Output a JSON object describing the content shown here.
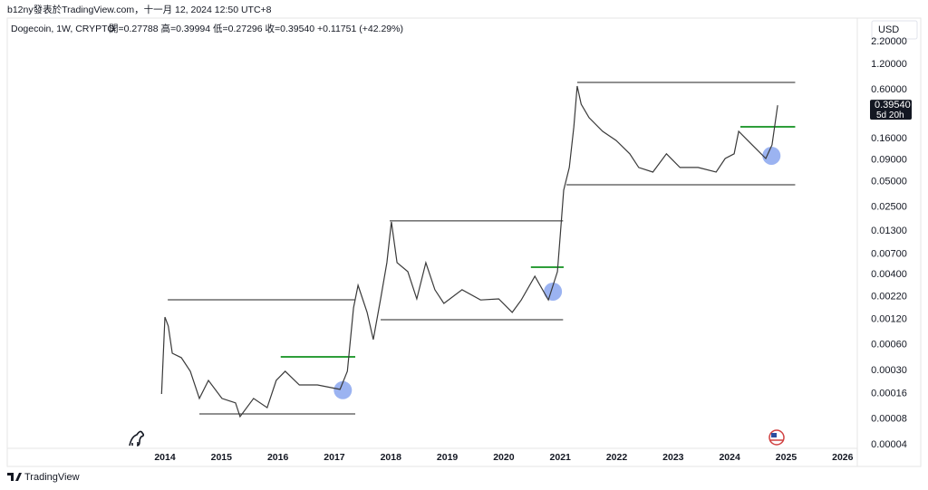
{
  "header": {
    "byline": "b12ny發表於TradingView.com，十一月 12, 2024 12:50 UTC+8",
    "brand": "TradingView"
  },
  "chart_data": {
    "type": "line",
    "symbol": "Dogecoin, 1W, CRYPTO",
    "ohlc": "開=0.27788 高=0.39994 低=0.27296 收=0.39540 +0.11751 (+42.29%)",
    "currency": "USD",
    "last_price_label": "0.39540",
    "countdown": "5d 20h",
    "log_scale": true,
    "grid": false,
    "color": "#3a3a3a",
    "x": [
      2013.94,
      2014.0,
      2014.06,
      2014.13,
      2014.29,
      2014.45,
      2014.61,
      2014.77,
      2015.01,
      2015.25,
      2015.33,
      2015.57,
      2015.81,
      2015.97,
      2016.13,
      2016.38,
      2016.7,
      2017.1,
      2017.23,
      2017.34,
      2017.42,
      2017.58,
      2017.69,
      2017.82,
      2017.93,
      2018.01,
      2018.11,
      2018.3,
      2018.46,
      2018.62,
      2018.78,
      2018.94,
      2019.26,
      2019.59,
      2019.91,
      2020.15,
      2020.31,
      2020.55,
      2020.79,
      2020.95,
      2021.0,
      2021.06,
      2021.16,
      2021.24,
      2021.3,
      2021.37,
      2021.51,
      2021.75,
      2021.99,
      2022.23,
      2022.39,
      2022.64,
      2022.88,
      2023.12,
      2023.44,
      2023.76,
      2023.92,
      2024.08,
      2024.16,
      2024.32,
      2024.48,
      2024.64,
      2024.75,
      2024.85
    ],
    "values": [
      0.000158,
      0.00127,
      0.000995,
      0.000477,
      0.000422,
      0.000292,
      0.00014,
      0.000228,
      0.00014,
      0.000124,
      8.55e-05,
      0.00014,
      0.000109,
      0.000228,
      0.000292,
      0.000202,
      0.000202,
      0.000179,
      0.000292,
      0.00163,
      0.003,
      0.00144,
      0.00069,
      0.00208,
      0.00555,
      0.0168,
      0.00555,
      0.00435,
      0.00208,
      0.00555,
      0.00266,
      0.00184,
      0.00266,
      0.00202,
      0.00208,
      0.00144,
      0.00202,
      0.00384,
      0.00202,
      0.00435,
      0.0116,
      0.0395,
      0.0731,
      0.22,
      0.665,
      0.407,
      0.282,
      0.195,
      0.152,
      0.106,
      0.0731,
      0.0646,
      0.106,
      0.0731,
      0.0731,
      0.0646,
      0.0933,
      0.106,
      0.195,
      0.152,
      0.119,
      0.0933,
      0.135,
      0.3954
    ],
    "xlim": [
      2011.24,
      2026.26
    ],
    "xticks": [
      2014,
      2015,
      2016,
      2017,
      2018,
      2019,
      2020,
      2021,
      2022,
      2023,
      2024,
      2025,
      2026
    ],
    "ylim": [
      3.62e-05,
      3.99
    ],
    "yticks": [
      {
        "value": 2.2,
        "label": "2.20000"
      },
      {
        "value": 1.2,
        "label": "1.20000"
      },
      {
        "value": 0.6,
        "label": "0.60000"
      },
      {
        "value": 0.16,
        "label": "0.16000"
      },
      {
        "value": 0.09,
        "label": "0.09000"
      },
      {
        "value": 0.05,
        "label": "0.05000"
      },
      {
        "value": 0.025,
        "label": "0.02500"
      },
      {
        "value": 0.013,
        "label": "0.01300"
      },
      {
        "value": 0.007,
        "label": "0.00700"
      },
      {
        "value": 0.004,
        "label": "0.00400"
      },
      {
        "value": 0.0022,
        "label": "0.00220"
      },
      {
        "value": 0.0012,
        "label": "0.00120"
      },
      {
        "value": 0.0006,
        "label": "0.00060"
      },
      {
        "value": 0.0003,
        "label": "0.00030"
      },
      {
        "value": 0.00016,
        "label": "0.00016"
      },
      {
        "value": 8e-05,
        "label": "0.00008"
      },
      {
        "value": 4e-05,
        "label": "0.00004"
      }
    ],
    "levels": [
      {
        "value": 0.00203,
        "x": [
          2014.05,
          2017.37
        ],
        "color": "#222222"
      },
      {
        "value": 9.2e-05,
        "x": [
          2014.61,
          2017.37
        ],
        "color": "#222222"
      },
      {
        "value": 0.0172,
        "x": [
          2017.98,
          2021.05
        ],
        "color": "#222222"
      },
      {
        "value": 0.00118,
        "x": [
          2017.82,
          2021.05
        ],
        "color": "#222222"
      },
      {
        "value": 0.734,
        "x": [
          2021.3,
          2025.16
        ],
        "color": "#222222"
      },
      {
        "value": 0.0458,
        "x": [
          2021.11,
          2025.16
        ],
        "color": "#222222"
      },
      {
        "value": 0.000432,
        "x": [
          2016.05,
          2017.37
        ],
        "color": "#2e9e3a"
      },
      {
        "value": 0.00491,
        "x": [
          2020.48,
          2021.06
        ],
        "color": "#2e9e3a"
      },
      {
        "value": 0.22,
        "x": [
          2024.19,
          2025.16
        ],
        "color": "#2e9e3a"
      }
    ],
    "circles": [
      {
        "x": 2017.15,
        "value": 0.000175,
        "color": "#8aa6ee"
      },
      {
        "x": 2020.87,
        "value": 0.00253,
        "color": "#8aa6ee"
      },
      {
        "x": 2024.74,
        "value": 0.1005,
        "color": "#8aa6ee"
      }
    ]
  }
}
